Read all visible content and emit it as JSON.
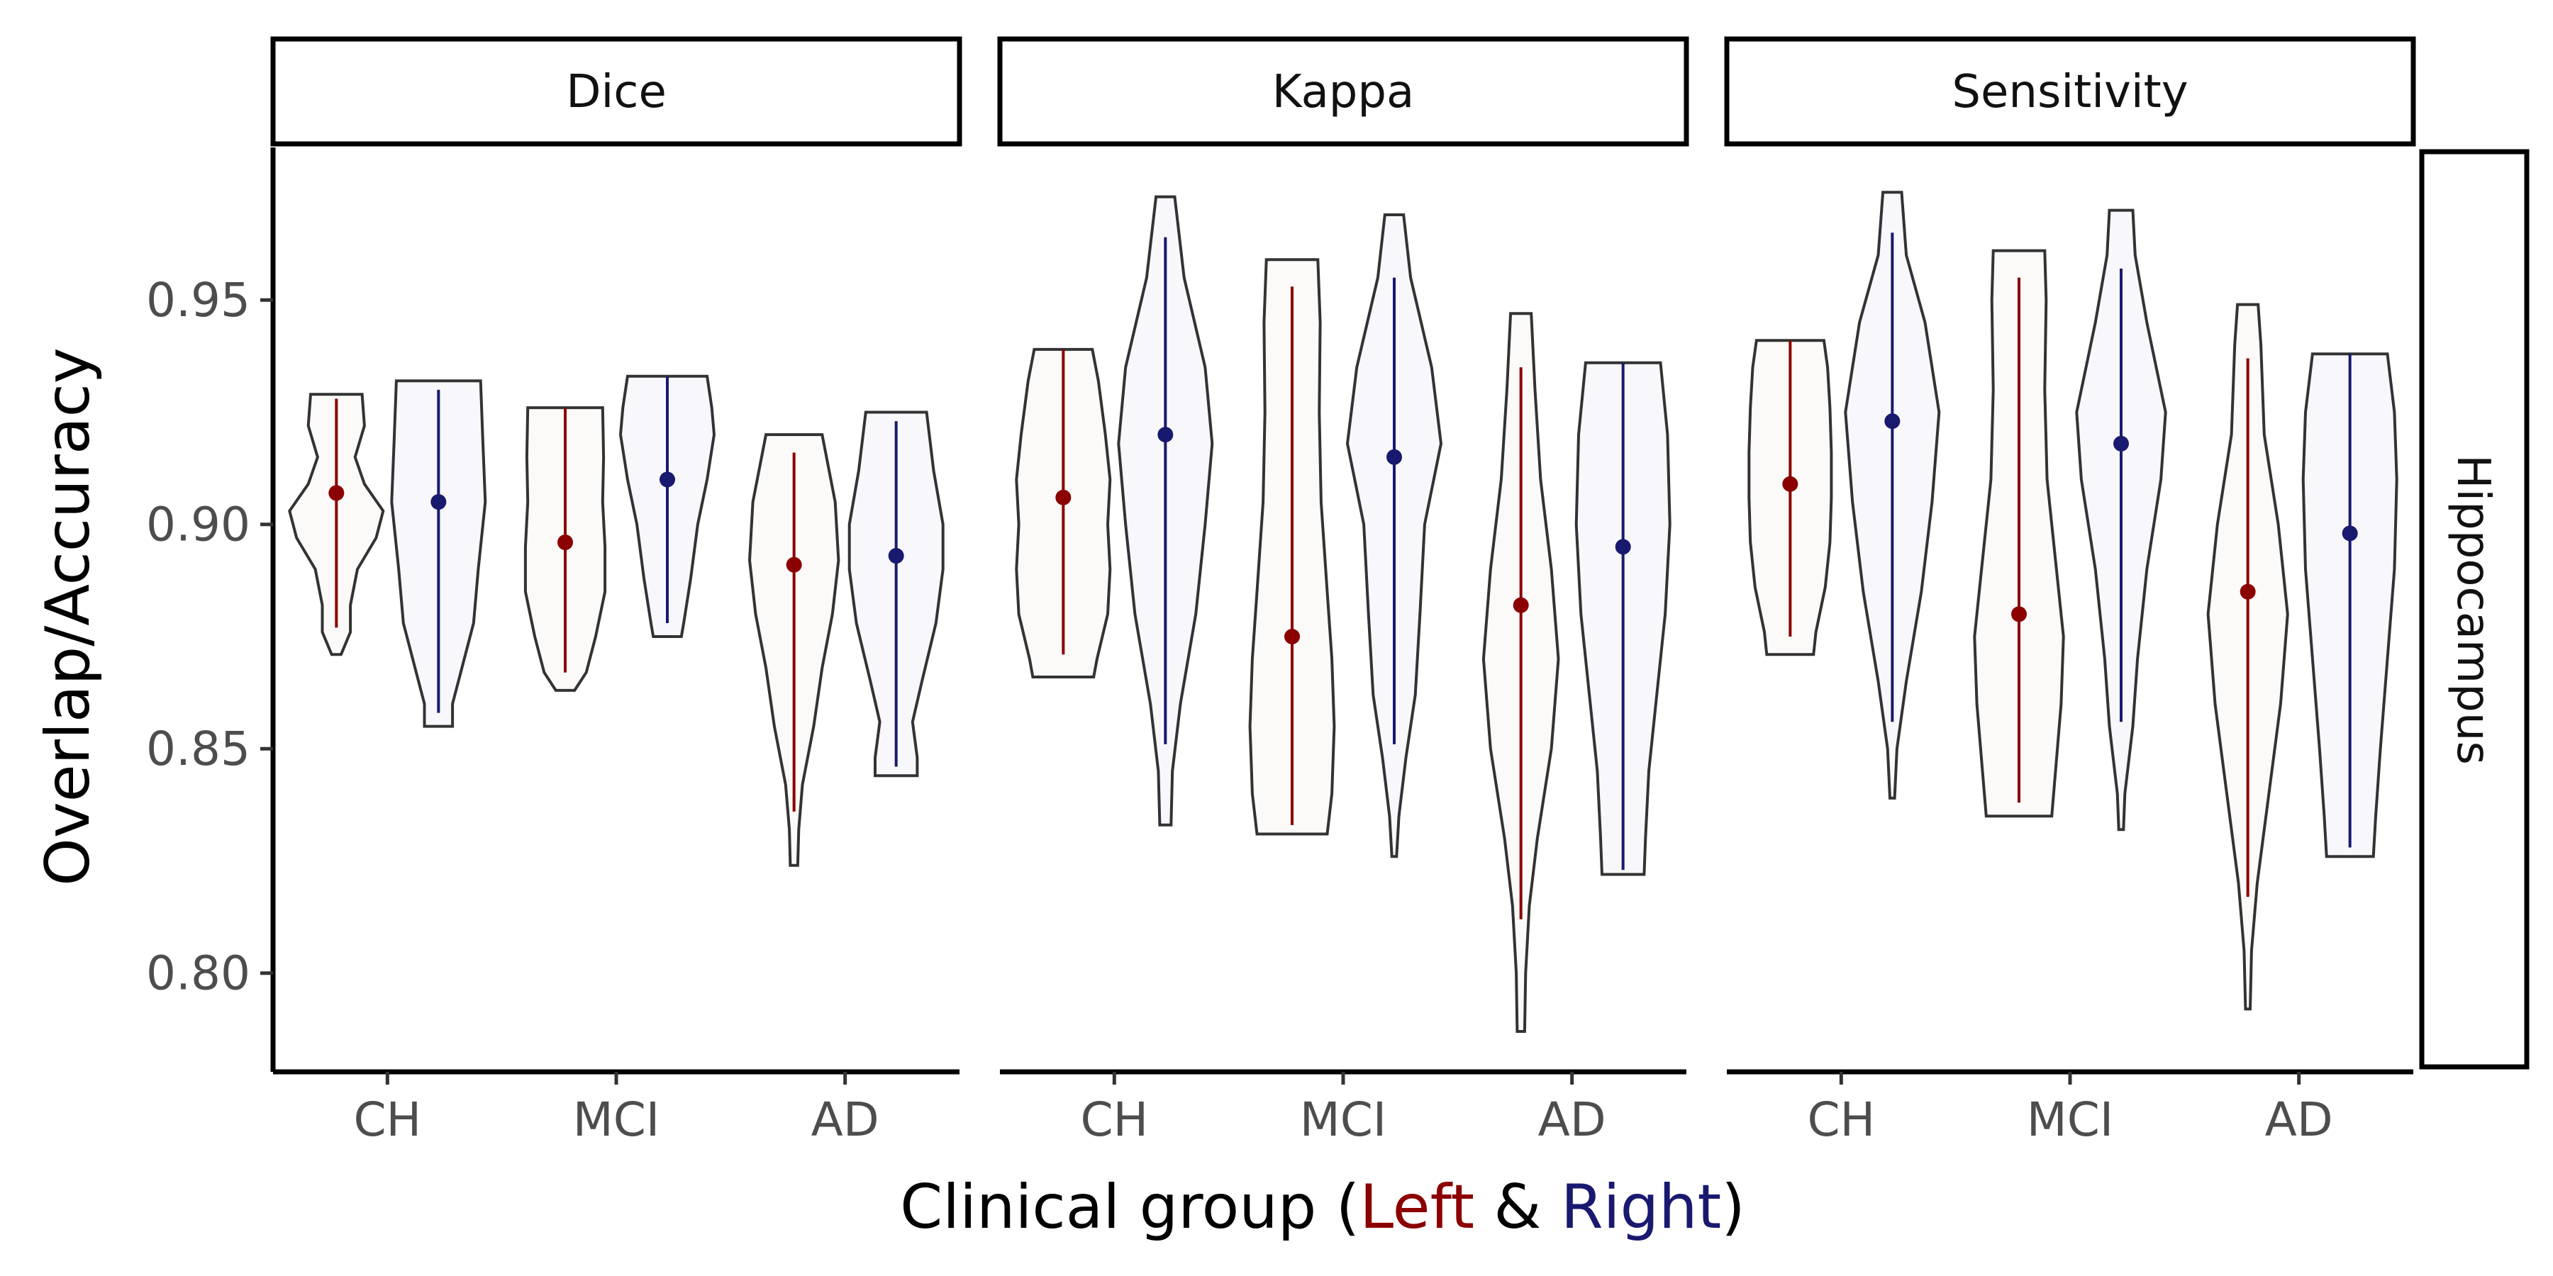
{
  "chart_data": {
    "type": "violin",
    "ylabel": "Overlap/Accuracy",
    "xlabel": {
      "prefix": "Clinical group (",
      "left": "Left",
      "amp": " & ",
      "right": "Right",
      "suffix": ")"
    },
    "row_strip": "Hippocampus",
    "ylim": [
      0.778,
      0.984
    ],
    "yticks": [
      0.8,
      0.85,
      0.9,
      0.95
    ],
    "ytick_labels": [
      "0.80",
      "0.85",
      "0.90",
      "0.95"
    ],
    "categories": [
      "CH",
      "MCI",
      "AD"
    ],
    "grid": false,
    "colors": {
      "left": "#8B0000",
      "right": "#191970",
      "left_fill": "#FCFAF9",
      "right_fill": "#F8F8FC",
      "outline": "#333333"
    },
    "panels": [
      {
        "title": "Dice",
        "groups": {
          "CH": {
            "left": {
              "min": 0.871,
              "max": 0.929,
              "mean": 0.907,
              "lo": 0.877,
              "hi": 0.928,
              "profile": [
                [
                  0.871,
                  0.1
                ],
                [
                  0.876,
                  0.3
                ],
                [
                  0.882,
                  0.3
                ],
                [
                  0.89,
                  0.45
                ],
                [
                  0.897,
                  0.85
                ],
                [
                  0.903,
                  1.0
                ],
                [
                  0.909,
                  0.6
                ],
                [
                  0.915,
                  0.4
                ],
                [
                  0.922,
                  0.6
                ],
                [
                  0.929,
                  0.55
                ]
              ]
            },
            "right": {
              "min": 0.855,
              "max": 0.932,
              "mean": 0.905,
              "lo": 0.858,
              "hi": 0.93,
              "profile": [
                [
                  0.855,
                  0.3
                ],
                [
                  0.86,
                  0.3
                ],
                [
                  0.866,
                  0.45
                ],
                [
                  0.878,
                  0.75
                ],
                [
                  0.89,
                  0.85
                ],
                [
                  0.905,
                  1.0
                ],
                [
                  0.918,
                  0.95
                ],
                [
                  0.932,
                  0.9
                ]
              ]
            }
          },
          "MCI": {
            "left": {
              "min": 0.863,
              "max": 0.926,
              "mean": 0.896,
              "lo": 0.867,
              "hi": 0.926,
              "profile": [
                [
                  0.863,
                  0.2
                ],
                [
                  0.867,
                  0.45
                ],
                [
                  0.875,
                  0.65
                ],
                [
                  0.885,
                  0.85
                ],
                [
                  0.895,
                  0.85
                ],
                [
                  0.905,
                  0.8
                ],
                [
                  0.915,
                  0.82
                ],
                [
                  0.926,
                  0.8
                ]
              ]
            },
            "right": {
              "min": 0.875,
              "max": 0.933,
              "mean": 0.91,
              "lo": 0.878,
              "hi": 0.933,
              "profile": [
                [
                  0.875,
                  0.3
                ],
                [
                  0.878,
                  0.35
                ],
                [
                  0.888,
                  0.5
                ],
                [
                  0.9,
                  0.65
                ],
                [
                  0.91,
                  0.85
                ],
                [
                  0.92,
                  1.0
                ],
                [
                  0.926,
                  0.95
                ],
                [
                  0.933,
                  0.85
                ]
              ]
            }
          },
          "AD": {
            "left": {
              "min": 0.824,
              "max": 0.92,
              "mean": 0.891,
              "lo": 0.836,
              "hi": 0.916,
              "profile": [
                [
                  0.824,
                  0.08
                ],
                [
                  0.832,
                  0.1
                ],
                [
                  0.842,
                  0.18
                ],
                [
                  0.855,
                  0.42
                ],
                [
                  0.868,
                  0.6
                ],
                [
                  0.88,
                  0.82
                ],
                [
                  0.892,
                  0.95
                ],
                [
                  0.905,
                  0.88
                ],
                [
                  0.92,
                  0.6
                ]
              ]
            },
            "right": {
              "min": 0.844,
              "max": 0.925,
              "mean": 0.893,
              "lo": 0.846,
              "hi": 0.923,
              "profile": [
                [
                  0.844,
                  0.45
                ],
                [
                  0.848,
                  0.45
                ],
                [
                  0.856,
                  0.35
                ],
                [
                  0.865,
                  0.55
                ],
                [
                  0.878,
                  0.85
                ],
                [
                  0.89,
                  1.0
                ],
                [
                  0.9,
                  1.0
                ],
                [
                  0.912,
                  0.8
                ],
                [
                  0.925,
                  0.65
                ]
              ]
            }
          }
        }
      },
      {
        "title": "Kappa",
        "groups": {
          "CH": {
            "left": {
              "min": 0.866,
              "max": 0.939,
              "mean": 0.906,
              "lo": 0.871,
              "hi": 0.939,
              "profile": [
                [
                  0.866,
                  0.65
                ],
                [
                  0.87,
                  0.72
                ],
                [
                  0.88,
                  0.95
                ],
                [
                  0.89,
                  1.0
                ],
                [
                  0.9,
                  0.95
                ],
                [
                  0.91,
                  1.0
                ],
                [
                  0.92,
                  0.9
                ],
                [
                  0.932,
                  0.75
                ],
                [
                  0.939,
                  0.62
                ]
              ]
            },
            "right": {
              "min": 0.833,
              "max": 0.973,
              "mean": 0.92,
              "lo": 0.851,
              "hi": 0.964,
              "profile": [
                [
                  0.833,
                  0.12
                ],
                [
                  0.845,
                  0.15
                ],
                [
                  0.86,
                  0.32
                ],
                [
                  0.88,
                  0.65
                ],
                [
                  0.9,
                  0.85
                ],
                [
                  0.918,
                  1.0
                ],
                [
                  0.935,
                  0.85
                ],
                [
                  0.955,
                  0.4
                ],
                [
                  0.973,
                  0.2
                ]
              ]
            }
          },
          "MCI": {
            "left": {
              "min": 0.831,
              "max": 0.959,
              "mean": 0.875,
              "lo": 0.833,
              "hi": 0.953,
              "profile": [
                [
                  0.831,
                  0.75
                ],
                [
                  0.84,
                  0.85
                ],
                [
                  0.855,
                  0.9
                ],
                [
                  0.87,
                  0.85
                ],
                [
                  0.885,
                  0.75
                ],
                [
                  0.905,
                  0.62
                ],
                [
                  0.925,
                  0.58
                ],
                [
                  0.945,
                  0.6
                ],
                [
                  0.959,
                  0.55
                ]
              ]
            },
            "right": {
              "min": 0.826,
              "max": 0.969,
              "mean": 0.915,
              "lo": 0.851,
              "hi": 0.955,
              "profile": [
                [
                  0.826,
                  0.05
                ],
                [
                  0.835,
                  0.1
                ],
                [
                  0.848,
                  0.25
                ],
                [
                  0.862,
                  0.45
                ],
                [
                  0.88,
                  0.55
                ],
                [
                  0.9,
                  0.65
                ],
                [
                  0.918,
                  1.0
                ],
                [
                  0.935,
                  0.8
                ],
                [
                  0.955,
                  0.35
                ],
                [
                  0.969,
                  0.2
                ]
              ]
            }
          },
          "AD": {
            "left": {
              "min": 0.787,
              "max": 0.947,
              "mean": 0.882,
              "lo": 0.812,
              "hi": 0.935,
              "profile": [
                [
                  0.787,
                  0.08
                ],
                [
                  0.8,
                  0.1
                ],
                [
                  0.815,
                  0.18
                ],
                [
                  0.83,
                  0.35
                ],
                [
                  0.85,
                  0.65
                ],
                [
                  0.87,
                  0.8
                ],
                [
                  0.89,
                  0.65
                ],
                [
                  0.91,
                  0.42
                ],
                [
                  0.93,
                  0.3
                ],
                [
                  0.947,
                  0.22
                ]
              ]
            },
            "right": {
              "min": 0.822,
              "max": 0.936,
              "mean": 0.895,
              "lo": 0.823,
              "hi": 0.936,
              "profile": [
                [
                  0.822,
                  0.45
                ],
                [
                  0.83,
                  0.48
                ],
                [
                  0.845,
                  0.55
                ],
                [
                  0.86,
                  0.7
                ],
                [
                  0.88,
                  0.9
                ],
                [
                  0.9,
                  1.0
                ],
                [
                  0.92,
                  0.95
                ],
                [
                  0.936,
                  0.8
                ]
              ]
            }
          }
        }
      },
      {
        "title": "Sensitivity",
        "groups": {
          "CH": {
            "left": {
              "min": 0.871,
              "max": 0.941,
              "mean": 0.909,
              "lo": 0.875,
              "hi": 0.941,
              "profile": [
                [
                  0.871,
                  0.5
                ],
                [
                  0.876,
                  0.55
                ],
                [
                  0.886,
                  0.75
                ],
                [
                  0.896,
                  0.85
                ],
                [
                  0.906,
                  0.88
                ],
                [
                  0.916,
                  0.88
                ],
                [
                  0.926,
                  0.85
                ],
                [
                  0.935,
                  0.8
                ],
                [
                  0.941,
                  0.72
                ]
              ]
            },
            "right": {
              "min": 0.839,
              "max": 0.974,
              "mean": 0.923,
              "lo": 0.856,
              "hi": 0.965,
              "profile": [
                [
                  0.839,
                  0.05
                ],
                [
                  0.85,
                  0.1
                ],
                [
                  0.865,
                  0.3
                ],
                [
                  0.885,
                  0.62
                ],
                [
                  0.905,
                  0.85
                ],
                [
                  0.925,
                  1.0
                ],
                [
                  0.945,
                  0.7
                ],
                [
                  0.96,
                  0.3
                ],
                [
                  0.974,
                  0.2
                ]
              ]
            }
          },
          "MCI": {
            "left": {
              "min": 0.835,
              "max": 0.961,
              "mean": 0.88,
              "lo": 0.838,
              "hi": 0.955,
              "profile": [
                [
                  0.835,
                  0.7
                ],
                [
                  0.845,
                  0.78
                ],
                [
                  0.86,
                  0.9
                ],
                [
                  0.875,
                  0.95
                ],
                [
                  0.89,
                  0.8
                ],
                [
                  0.91,
                  0.6
                ],
                [
                  0.93,
                  0.55
                ],
                [
                  0.95,
                  0.58
                ],
                [
                  0.961,
                  0.55
                ]
              ]
            },
            "right": {
              "min": 0.832,
              "max": 0.97,
              "mean": 0.918,
              "lo": 0.856,
              "hi": 0.957,
              "profile": [
                [
                  0.832,
                  0.05
                ],
                [
                  0.84,
                  0.08
                ],
                [
                  0.855,
                  0.25
                ],
                [
                  0.87,
                  0.35
                ],
                [
                  0.89,
                  0.55
                ],
                [
                  0.91,
                  0.85
                ],
                [
                  0.925,
                  0.95
                ],
                [
                  0.945,
                  0.55
                ],
                [
                  0.96,
                  0.3
                ],
                [
                  0.97,
                  0.25
                ]
              ]
            }
          },
          "AD": {
            "left": {
              "min": 0.792,
              "max": 0.949,
              "mean": 0.885,
              "lo": 0.817,
              "hi": 0.937,
              "profile": [
                [
                  0.792,
                  0.05
                ],
                [
                  0.805,
                  0.08
                ],
                [
                  0.82,
                  0.2
                ],
                [
                  0.84,
                  0.45
                ],
                [
                  0.86,
                  0.7
                ],
                [
                  0.88,
                  0.85
                ],
                [
                  0.9,
                  0.65
                ],
                [
                  0.92,
                  0.35
                ],
                [
                  0.94,
                  0.28
                ],
                [
                  0.949,
                  0.22
                ]
              ]
            },
            "right": {
              "min": 0.826,
              "max": 0.938,
              "mean": 0.898,
              "lo": 0.828,
              "hi": 0.938,
              "profile": [
                [
                  0.826,
                  0.5
                ],
                [
                  0.835,
                  0.55
                ],
                [
                  0.85,
                  0.65
                ],
                [
                  0.87,
                  0.8
                ],
                [
                  0.89,
                  0.95
                ],
                [
                  0.91,
                  1.0
                ],
                [
                  0.925,
                  0.95
                ],
                [
                  0.938,
                  0.8
                ]
              ]
            }
          }
        }
      }
    ]
  }
}
